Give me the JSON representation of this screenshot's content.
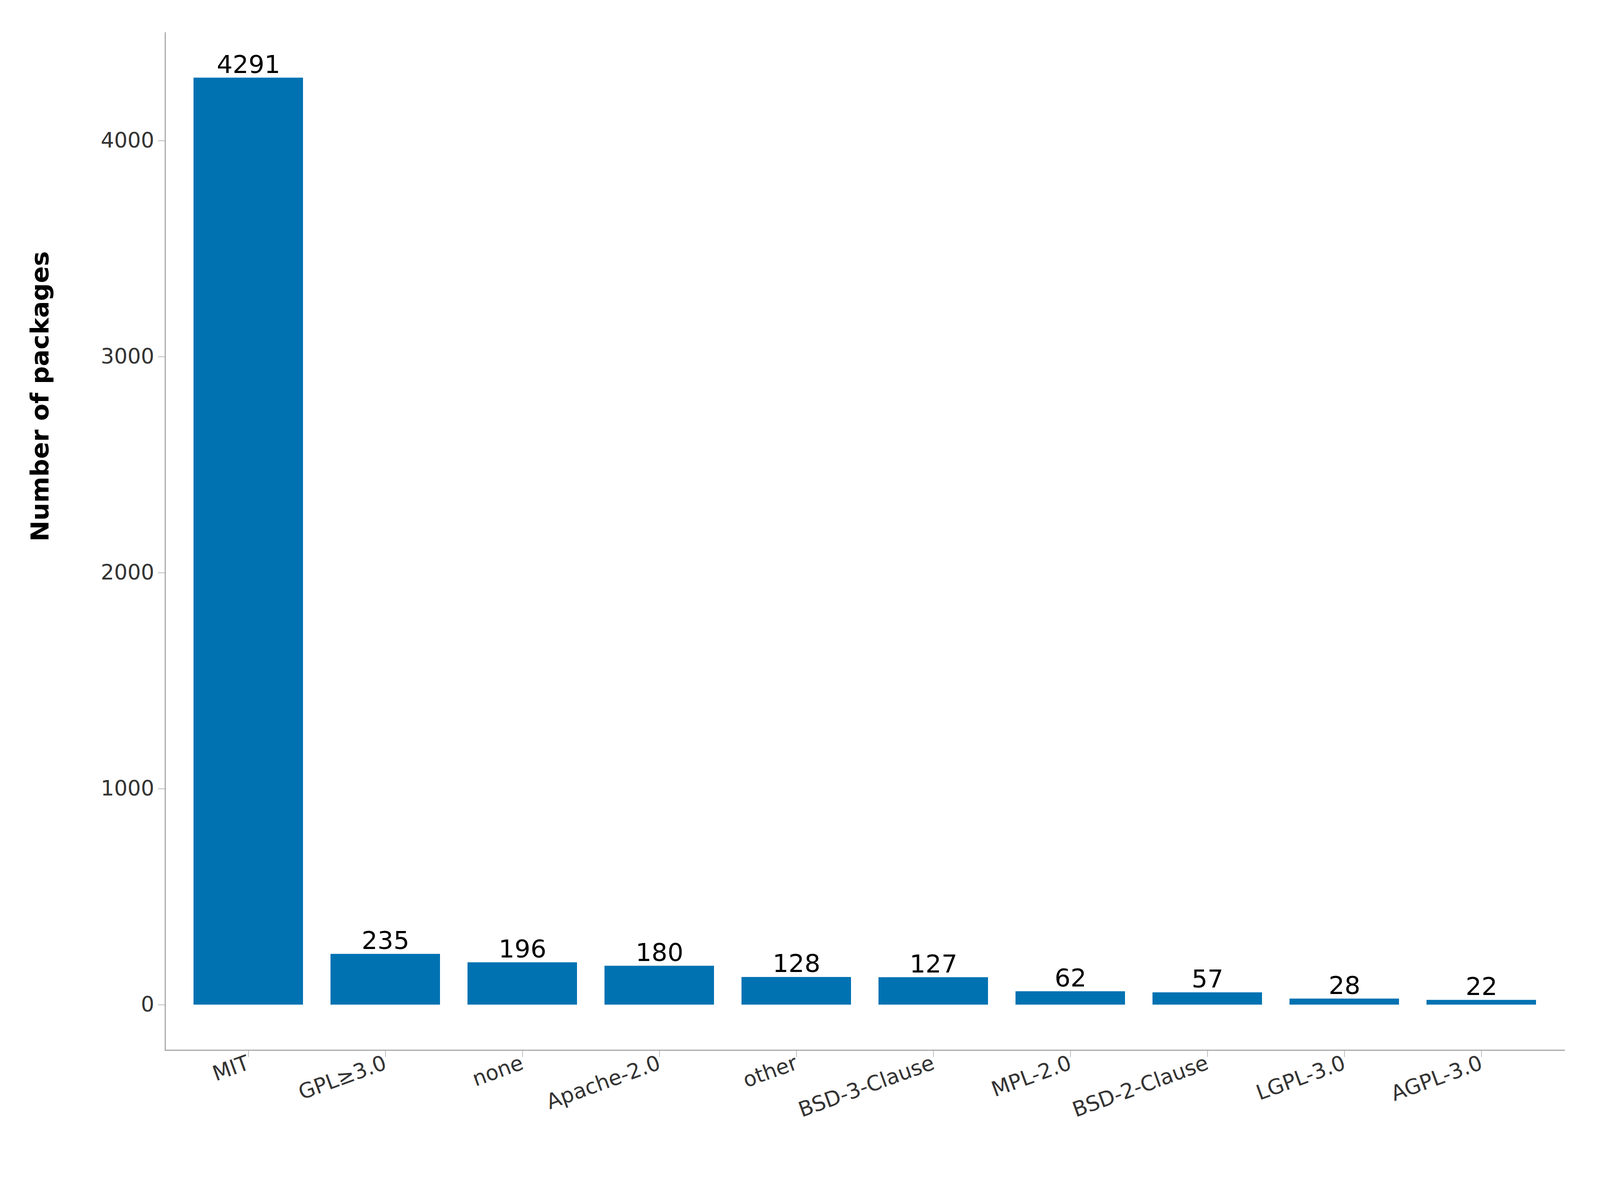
{
  "chart_data": {
    "type": "bar",
    "ylabel": "Number of packages",
    "categories": [
      "MIT",
      "GPL≥3.0",
      "none",
      "Apache-2.0",
      "other",
      "BSD-3-Clause",
      "MPL-2.0",
      "BSD-2-Clause",
      "LGPL-3.0",
      "AGPL-3.0"
    ],
    "values": [
      4291,
      235,
      196,
      180,
      128,
      127,
      62,
      57,
      28,
      22
    ],
    "color": "#0072b2",
    "ylim": [
      -210,
      4500
    ],
    "yticks": [
      0,
      1000,
      2000,
      3000,
      4000
    ],
    "grid": false,
    "data_labels": true
  }
}
